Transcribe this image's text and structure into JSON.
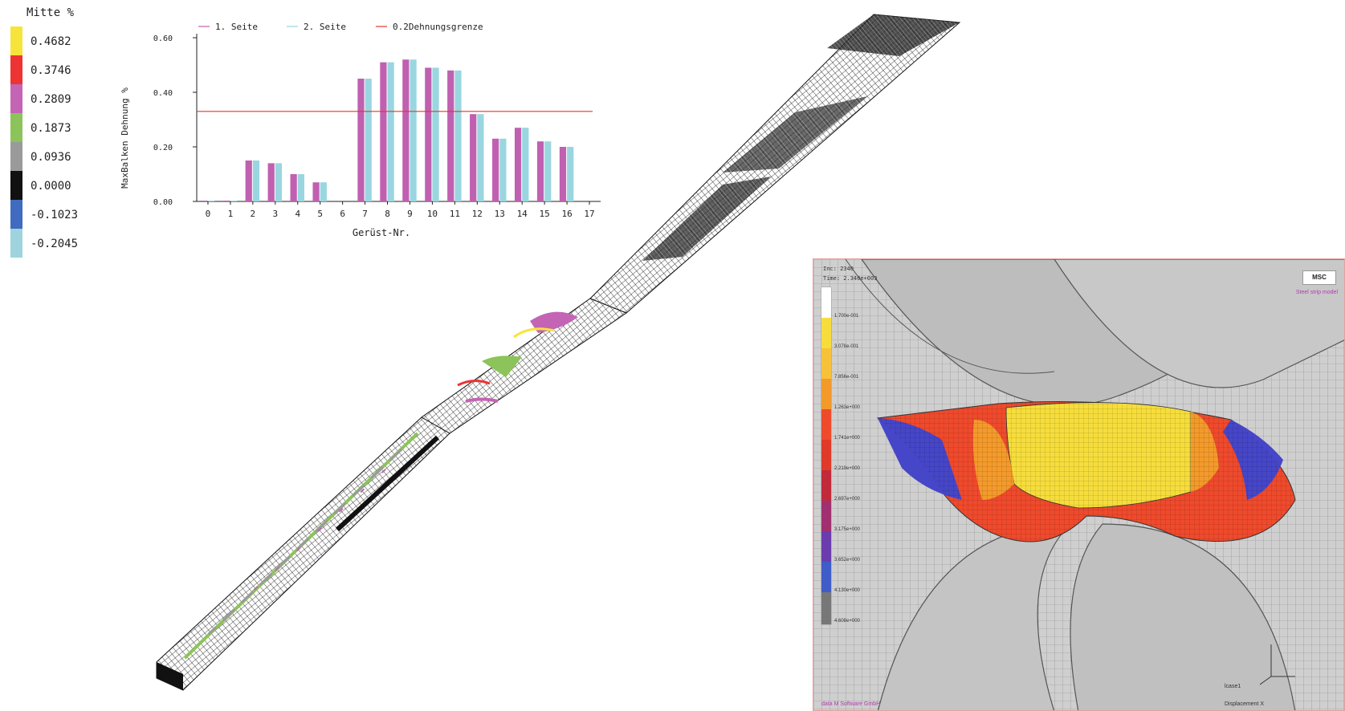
{
  "legend": {
    "title": "Mitte %",
    "items": [
      {
        "label": "0.4682",
        "color": "#f7e43a"
      },
      {
        "label": "0.3746",
        "color": "#ee3333"
      },
      {
        "label": "0.2809",
        "color": "#c464b4"
      },
      {
        "label": "0.1873",
        "color": "#8cc35a"
      },
      {
        "label": "0.0936",
        "color": "#9a9a9a"
      },
      {
        "label": "0.0000",
        "color": "#111111"
      },
      {
        "label": "-0.1023",
        "color": "#3f6cc0"
      },
      {
        "label": "-0.2045",
        "color": "#9fd4de"
      }
    ]
  },
  "chart_data": {
    "type": "bar",
    "xlabel": "Gerüst-Nr.",
    "ylabel": "MaxBalken Dehnung %",
    "ylim": [
      0,
      0.6
    ],
    "yticks": [
      "0.00",
      "0.20",
      "0.40",
      "0.60"
    ],
    "categories": [
      "0",
      "1",
      "2",
      "3",
      "4",
      "5",
      "6",
      "7",
      "8",
      "9",
      "10",
      "11",
      "12",
      "13",
      "14",
      "15",
      "16",
      "17"
    ],
    "series": [
      {
        "name": "1. Seite",
        "color": "#c060b0",
        "values": [
          0.0,
          0.0,
          0.15,
          0.14,
          0.1,
          0.07,
          null,
          0.45,
          0.51,
          0.52,
          0.49,
          0.48,
          0.32,
          0.23,
          0.27,
          0.22,
          0.2,
          null
        ]
      },
      {
        "name": "2. Seite",
        "color": "#99d6e0",
        "values": [
          0.0,
          0.0,
          0.15,
          0.14,
          0.1,
          0.07,
          null,
          0.45,
          0.51,
          0.52,
          0.49,
          0.48,
          0.32,
          0.23,
          0.27,
          0.22,
          0.2,
          null
        ]
      }
    ],
    "reference_line": {
      "name": "0.2Dehnungsgrenze",
      "value": 0.33,
      "color": "#e8332a"
    },
    "legend_position": "top"
  },
  "fe_panel": {
    "inc": "Inc:  2340",
    "time": "Time:  2.340e+003",
    "logo": "MSC",
    "model_label": "Steel strip model",
    "company": "data M Software GmbH",
    "job": "lcase1",
    "displacement": "Displacement X",
    "scale": [
      "1.700e-001",
      "3.078e-001",
      "7.856e-001",
      "1.263e+000",
      "1.741e+000",
      "2.219e+000",
      "2.697e+000",
      "3.175e+000",
      "3.652e+000",
      "4.130e+000",
      "4.608e+000"
    ]
  }
}
